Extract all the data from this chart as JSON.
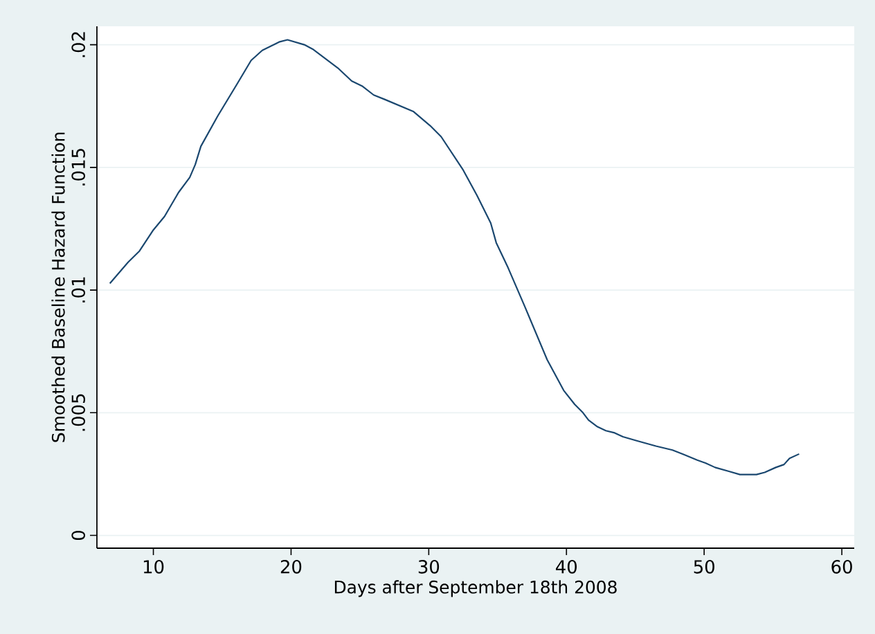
{
  "chart_data": {
    "type": "line",
    "xlabel": "Days after September 18th 2008",
    "ylabel": "Smoothed Baseline Hazard Function",
    "xlim": [
      5.9,
      60.9
    ],
    "ylim": [
      -0.00052,
      0.02075
    ],
    "xticks": [
      10,
      20,
      30,
      40,
      50,
      60
    ],
    "yticks": [
      0,
      {
        "value": 0.005,
        "label": ".005"
      },
      {
        "value": 0.01,
        "label": ".01"
      },
      {
        "value": 0.015,
        "label": ".015"
      },
      {
        "value": 0.02,
        "label": ".02"
      }
    ],
    "grid": "y",
    "marker": "none",
    "line_style": "solid",
    "series": [
      {
        "color": "#1a476f",
        "x": [
          6.84,
          8.17,
          8.99,
          10,
          10.81,
          11.83,
          12.64,
          13.04,
          13.45,
          14.67,
          16.09,
          17.1,
          17.91,
          19.13,
          19.74,
          20.96,
          21.57,
          23.4,
          24.4,
          25.2,
          26.0,
          26.8,
          28.9,
          30.1,
          30.9,
          32.5,
          33.5,
          34.5,
          34.9,
          35.76,
          36.98,
          38.6,
          39.8,
          40.6,
          41.2,
          41.6,
          42.25,
          42.86,
          43.5,
          44.1,
          45.1,
          46.5,
          47.7,
          48.5,
          49.5,
          50.1,
          50.8,
          51.8,
          52.6,
          53.8,
          54.4,
          55.2,
          55.8,
          56.2,
          56.9
        ],
        "values": [
          0.01027,
          0.01114,
          0.01159,
          0.01245,
          0.013,
          0.01398,
          0.01459,
          0.01511,
          0.01586,
          0.01709,
          0.01841,
          0.01936,
          0.01977,
          0.02011,
          0.0202,
          0.02,
          0.01982,
          0.01905,
          0.01852,
          0.0183,
          0.01795,
          0.01777,
          0.01727,
          0.0167,
          0.01625,
          0.01489,
          0.01386,
          0.01273,
          0.01193,
          0.01091,
          0.00932,
          0.00716,
          0.00591,
          0.00534,
          0.005,
          0.0047,
          0.00443,
          0.00427,
          0.00418,
          0.00402,
          0.00386,
          0.00364,
          0.00348,
          0.0033,
          0.00307,
          0.00295,
          0.00277,
          0.00261,
          0.00248,
          0.00248,
          0.00257,
          0.00277,
          0.00289,
          0.00314,
          0.00332
        ]
      }
    ]
  }
}
